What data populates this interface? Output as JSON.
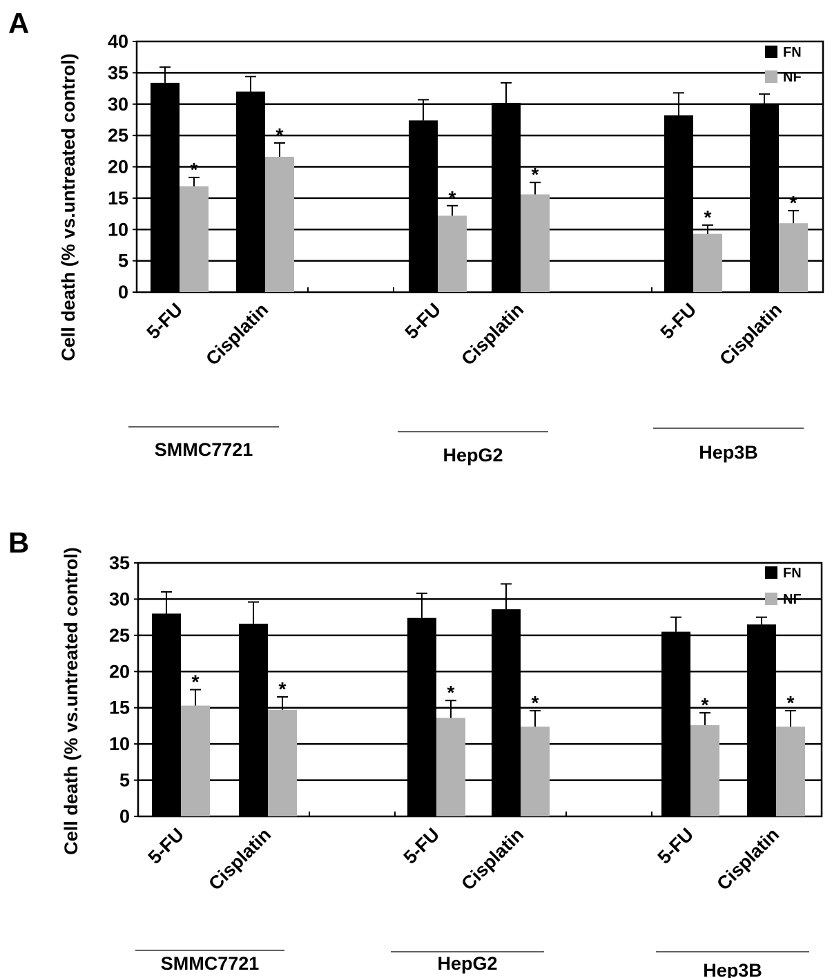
{
  "chart_data": [
    {
      "panel_label": "A",
      "type": "bar",
      "ylabel": "Cell death (% vs.untreated control)",
      "ylim": [
        0,
        40
      ],
      "yticks": [
        0,
        5,
        10,
        15,
        20,
        25,
        30,
        35,
        40
      ],
      "grid": true,
      "legend": {
        "position": "top-right",
        "entries": [
          "FN",
          "NF"
        ]
      },
      "groups": [
        {
          "name": "SMMC7721",
          "categories": [
            "5-FU",
            "Cisplatin"
          ]
        },
        {
          "name": "HepG2",
          "categories": [
            "5-FU",
            "Cisplatin"
          ]
        },
        {
          "name": "Hep3B",
          "categories": [
            "5-FU",
            "Cisplatin"
          ]
        }
      ],
      "series": [
        {
          "name": "FN",
          "color": "#000000",
          "values": [
            33.4,
            32.0,
            27.4,
            30.2,
            28.2,
            29.9
          ],
          "errors": [
            2.5,
            2.4,
            3.3,
            3.2,
            3.6,
            1.7
          ],
          "significant": [
            false,
            false,
            false,
            false,
            false,
            false
          ]
        },
        {
          "name": "NF",
          "color": "#b3b3b3",
          "values": [
            16.9,
            21.6,
            12.2,
            15.6,
            9.3,
            11.0
          ],
          "errors": [
            1.4,
            2.2,
            1.6,
            1.9,
            1.4,
            2.0
          ],
          "significant": [
            true,
            true,
            true,
            true,
            true,
            true
          ]
        }
      ],
      "annotation": "*"
    },
    {
      "panel_label": "B",
      "type": "bar",
      "ylabel": "Cell death (% vs.untreated control)",
      "ylim": [
        0,
        35
      ],
      "yticks": [
        0,
        5,
        10,
        15,
        20,
        25,
        30,
        35
      ],
      "grid": true,
      "legend": {
        "position": "top-right",
        "entries": [
          "FN",
          "NF"
        ]
      },
      "groups": [
        {
          "name": "SMMC7721",
          "categories": [
            "5-FU",
            "Cisplatin"
          ]
        },
        {
          "name": "HepG2",
          "categories": [
            "5-FU",
            "Cisplatin"
          ]
        },
        {
          "name": "Hep3B",
          "categories": [
            "5-FU",
            "Cisplatin"
          ]
        }
      ],
      "series": [
        {
          "name": "FN",
          "color": "#000000",
          "values": [
            28.0,
            26.6,
            27.4,
            28.6,
            25.5,
            26.5
          ],
          "errors": [
            3.0,
            3.0,
            3.4,
            3.5,
            2.0,
            1.0
          ],
          "significant": [
            false,
            false,
            false,
            false,
            false,
            false
          ]
        },
        {
          "name": "NF",
          "color": "#b3b3b3",
          "values": [
            15.3,
            14.7,
            13.6,
            12.4,
            12.6,
            12.4
          ],
          "errors": [
            2.2,
            1.8,
            2.4,
            2.2,
            1.7,
            2.2
          ],
          "significant": [
            true,
            true,
            true,
            true,
            true,
            true
          ]
        }
      ],
      "annotation": "*"
    }
  ]
}
